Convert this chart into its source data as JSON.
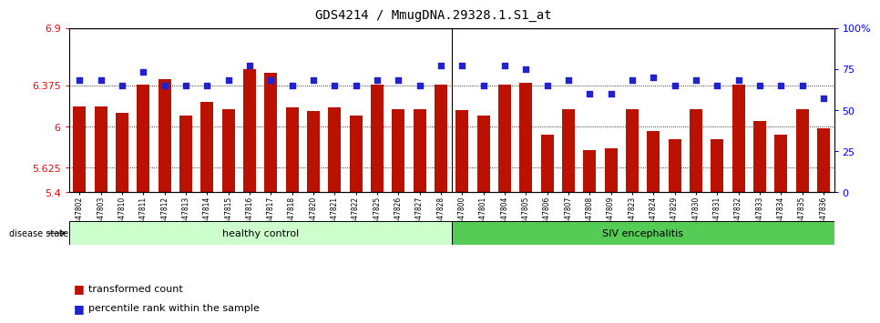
{
  "title": "GDS4214 / MmugDNA.29328.1.S1_at",
  "samples": [
    "GSM347802",
    "GSM347803",
    "GSM347810",
    "GSM347811",
    "GSM347812",
    "GSM347813",
    "GSM347814",
    "GSM347815",
    "GSM347816",
    "GSM347817",
    "GSM347818",
    "GSM347820",
    "GSM347821",
    "GSM347822",
    "GSM347825",
    "GSM347826",
    "GSM347827",
    "GSM347828",
    "GSM347800",
    "GSM347801",
    "GSM347804",
    "GSM347805",
    "GSM347806",
    "GSM347807",
    "GSM347808",
    "GSM347809",
    "GSM347823",
    "GSM347824",
    "GSM347829",
    "GSM347830",
    "GSM347831",
    "GSM347832",
    "GSM347833",
    "GSM347834",
    "GSM347835",
    "GSM347836"
  ],
  "bar_values": [
    6.18,
    6.18,
    6.12,
    6.38,
    6.43,
    6.1,
    6.22,
    6.16,
    6.52,
    6.49,
    6.17,
    6.14,
    6.17,
    6.1,
    6.38,
    6.16,
    6.16,
    6.38,
    6.15,
    6.1,
    6.38,
    6.4,
    5.92,
    6.16,
    5.78,
    5.8,
    6.16,
    5.96,
    5.88,
    6.16,
    5.88,
    6.38,
    6.05,
    5.92,
    6.16,
    5.98
  ],
  "percentile_values": [
    68,
    68,
    65,
    73,
    65,
    65,
    65,
    68,
    77,
    68,
    65,
    68,
    65,
    65,
    68,
    68,
    65,
    77,
    77,
    65,
    77,
    75,
    65,
    68,
    60,
    60,
    68,
    70,
    65,
    68,
    65,
    68,
    65,
    65,
    65,
    57
  ],
  "ylim_left": [
    5.4,
    6.9
  ],
  "ylim_right": [
    0,
    100
  ],
  "yticks_left": [
    5.4,
    5.625,
    6.0,
    6.375,
    6.9
  ],
  "ytick_labels_left": [
    "5.4",
    "5.625",
    "6",
    "6.375",
    "6.9"
  ],
  "yticks_right": [
    0,
    25,
    50,
    75,
    100
  ],
  "ytick_labels_right": [
    "0",
    "25",
    "50",
    "75",
    "100%"
  ],
  "group1_label": "healthy control",
  "group2_label": "SIV encephalitis",
  "group1_count": 18,
  "group2_count": 18,
  "bar_color": "#BB1100",
  "dot_color": "#2222CC",
  "group1_bg": "#CCFFCC",
  "group2_bg": "#55CC55",
  "disease_label": "disease state",
  "legend1": "transformed count",
  "legend2": "percentile rank within the sample",
  "bgcolor": "#F0F0F0"
}
